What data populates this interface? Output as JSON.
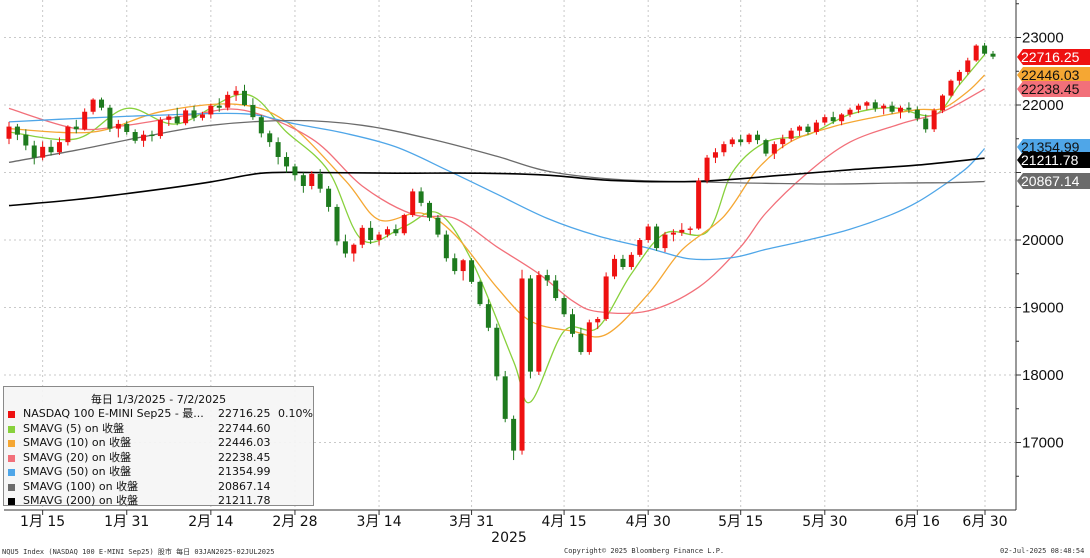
{
  "chart_data": {
    "type": "candlestick",
    "instrument": "NASDAQ 100 E-MINI Sep25 - 最...",
    "y_axis": {
      "ticks": [
        17000,
        18000,
        19000,
        20000,
        21000,
        22000,
        23000
      ],
      "tick_labels": [
        "17000",
        "18000",
        "19000",
        "20000",
        "",
        "22000",
        "23000"
      ],
      "range": [
        16000,
        23550
      ],
      "side": "right"
    },
    "x_axis": {
      "labels": [
        "1月 15",
        "1月 31",
        "2月 14",
        "2月 28",
        "3月 14",
        "3月 31",
        "4月 15",
        "4月 30",
        "5月 15",
        "5月 30",
        "6月 16",
        "6月 30"
      ],
      "year_label": "2025"
    },
    "grid": true,
    "legend_placement": "bottom-left",
    "current_values": [
      {
        "label": "22716.25",
        "value": 22716.25,
        "bg": "#ee1111",
        "fg": "#ffffff"
      },
      {
        "label": "22446.03",
        "value": 22446.03,
        "bg": "#f5a733",
        "fg": "#111111"
      },
      {
        "label": "22238.45",
        "value": 22238.45,
        "bg": "#f2707a",
        "fg": "#111111"
      },
      {
        "label": "21354.99",
        "value": 21354.99,
        "bg": "#4fa6e8",
        "fg": "#111111"
      },
      {
        "label": "21211.78",
        "value": 21211.78,
        "bg": "#000000",
        "fg": "#ffffff"
      },
      {
        "label": "20867.14",
        "value": 20867.14,
        "bg": "#6b6b6b",
        "fg": "#ffffff"
      }
    ],
    "candles_ohlc": [
      [
        21500,
        21750,
        21420,
        21680
      ],
      [
        21680,
        21720,
        21480,
        21560
      ],
      [
        21560,
        21640,
        21330,
        21400
      ],
      [
        21400,
        21470,
        21120,
        21220
      ],
      [
        21220,
        21460,
        21180,
        21380
      ],
      [
        21380,
        21480,
        21250,
        21300
      ],
      [
        21300,
        21520,
        21260,
        21450
      ],
      [
        21450,
        21700,
        21400,
        21680
      ],
      [
        21680,
        21780,
        21580,
        21640
      ],
      [
        21640,
        21950,
        21620,
        21900
      ],
      [
        21900,
        22100,
        21860,
        22080
      ],
      [
        22080,
        22110,
        21920,
        21960
      ],
      [
        21960,
        22000,
        21600,
        21650
      ],
      [
        21650,
        21780,
        21520,
        21720
      ],
      [
        21720,
        21760,
        21560,
        21600
      ],
      [
        21600,
        21640,
        21430,
        21470
      ],
      [
        21470,
        21620,
        21380,
        21560
      ],
      [
        21560,
        21620,
        21460,
        21540
      ],
      [
        21540,
        21820,
        21500,
        21780
      ],
      [
        21780,
        21860,
        21690,
        21830
      ],
      [
        21830,
        21960,
        21700,
        21730
      ],
      [
        21730,
        21950,
        21700,
        21920
      ],
      [
        21920,
        21990,
        21760,
        21810
      ],
      [
        21810,
        21900,
        21770,
        21860
      ],
      [
        21860,
        22020,
        21800,
        21990
      ],
      [
        21990,
        22100,
        21900,
        21960
      ],
      [
        21960,
        22200,
        21920,
        22150
      ],
      [
        22150,
        22280,
        22060,
        22210
      ],
      [
        22210,
        22300,
        21980,
        22000
      ],
      [
        22000,
        22100,
        21780,
        21820
      ],
      [
        21820,
        21850,
        21520,
        21580
      ],
      [
        21580,
        21620,
        21380,
        21450
      ],
      [
        21450,
        21520,
        21120,
        21230
      ],
      [
        21230,
        21300,
        21000,
        21090
      ],
      [
        21090,
        21130,
        20880,
        20960
      ],
      [
        20960,
        21000,
        20700,
        20800
      ],
      [
        20800,
        21020,
        20750,
        20980
      ],
      [
        20980,
        21050,
        20700,
        20760
      ],
      [
        20760,
        20800,
        20420,
        20490
      ],
      [
        20490,
        20530,
        19920,
        19980
      ],
      [
        19980,
        20080,
        19740,
        19800
      ],
      [
        19800,
        19950,
        19680,
        19930
      ],
      [
        19930,
        20220,
        19880,
        20180
      ],
      [
        20180,
        20280,
        19940,
        20000
      ],
      [
        20000,
        20120,
        19920,
        20080
      ],
      [
        20080,
        20200,
        20040,
        20160
      ],
      [
        20160,
        20230,
        20060,
        20100
      ],
      [
        20100,
        20390,
        20070,
        20370
      ],
      [
        20370,
        20760,
        20340,
        20720
      ],
      [
        20720,
        20780,
        20500,
        20550
      ],
      [
        20550,
        20580,
        20280,
        20330
      ],
      [
        20330,
        20370,
        20040,
        20080
      ],
      [
        20080,
        20140,
        19680,
        19730
      ],
      [
        19730,
        19800,
        19490,
        19540
      ],
      [
        19540,
        19720,
        19400,
        19700
      ],
      [
        19700,
        19730,
        19350,
        19380
      ],
      [
        19380,
        19400,
        19020,
        19050
      ],
      [
        19050,
        19120,
        18650,
        18700
      ],
      [
        18700,
        18760,
        17920,
        17980
      ],
      [
        17980,
        18060,
        17300,
        17350
      ],
      [
        17350,
        17400,
        16740,
        16880
      ],
      [
        16880,
        19560,
        16820,
        19430
      ],
      [
        19430,
        19480,
        17950,
        18050
      ],
      [
        18050,
        19540,
        18000,
        19480
      ],
      [
        19480,
        19560,
        19320,
        19400
      ],
      [
        19400,
        19480,
        19100,
        19140
      ],
      [
        19140,
        19180,
        18860,
        18900
      ],
      [
        18900,
        18980,
        18560,
        18610
      ],
      [
        18610,
        18700,
        18300,
        18340
      ],
      [
        18340,
        18820,
        18300,
        18780
      ],
      [
        18780,
        18860,
        18680,
        18830
      ],
      [
        18830,
        19520,
        18800,
        19460
      ],
      [
        19460,
        19780,
        19420,
        19720
      ],
      [
        19720,
        19780,
        19560,
        19600
      ],
      [
        19600,
        19820,
        19560,
        19780
      ],
      [
        19780,
        20030,
        19750,
        20000
      ],
      [
        20000,
        20240,
        19960,
        20200
      ],
      [
        20200,
        20240,
        19840,
        19880
      ],
      [
        19880,
        20120,
        19820,
        20080
      ],
      [
        20080,
        20160,
        19980,
        20110
      ],
      [
        20110,
        20250,
        20060,
        20150
      ],
      [
        20150,
        20200,
        20080,
        20170
      ],
      [
        20170,
        20920,
        20150,
        20880
      ],
      [
        20880,
        21260,
        20840,
        21220
      ],
      [
        21220,
        21360,
        21140,
        21300
      ],
      [
        21300,
        21460,
        21240,
        21420
      ],
      [
        21420,
        21520,
        21380,
        21490
      ],
      [
        21490,
        21560,
        21400,
        21450
      ],
      [
        21450,
        21580,
        21420,
        21560
      ],
      [
        21560,
        21620,
        21420,
        21480
      ],
      [
        21480,
        21500,
        21240,
        21280
      ],
      [
        21280,
        21460,
        21200,
        21420
      ],
      [
        21420,
        21560,
        21360,
        21500
      ],
      [
        21500,
        21660,
        21460,
        21620
      ],
      [
        21620,
        21700,
        21540,
        21680
      ],
      [
        21680,
        21720,
        21560,
        21600
      ],
      [
        21600,
        21780,
        21560,
        21740
      ],
      [
        21740,
        21860,
        21700,
        21820
      ],
      [
        21820,
        21900,
        21720,
        21760
      ],
      [
        21760,
        21880,
        21700,
        21860
      ],
      [
        21860,
        21960,
        21820,
        21930
      ],
      [
        21930,
        22020,
        21880,
        21990
      ],
      [
        21990,
        22060,
        21930,
        22040
      ],
      [
        22040,
        22080,
        21900,
        21950
      ],
      [
        21950,
        22020,
        21860,
        21990
      ],
      [
        21990,
        22050,
        21870,
        21900
      ],
      [
        21900,
        21990,
        21800,
        21960
      ],
      [
        21960,
        22040,
        21880,
        21930
      ],
      [
        21930,
        21980,
        21760,
        21800
      ],
      [
        21800,
        21860,
        21590,
        21640
      ],
      [
        21640,
        21950,
        21600,
        21920
      ],
      [
        21920,
        22160,
        21880,
        22140
      ],
      [
        22140,
        22380,
        22120,
        22360
      ],
      [
        22360,
        22520,
        22300,
        22490
      ],
      [
        22490,
        22700,
        22450,
        22660
      ],
      [
        22660,
        22900,
        22640,
        22880
      ],
      [
        22880,
        22920,
        22740,
        22760
      ],
      [
        22760,
        22800,
        22680,
        22716
      ]
    ],
    "moving_averages": [
      {
        "name": "SMAVG (5)",
        "color": "#88d13c",
        "points": [
          [
            0,
            21600
          ],
          [
            8,
            21500
          ],
          [
            14,
            21950
          ],
          [
            20,
            21720
          ],
          [
            28,
            22160
          ],
          [
            33,
            21600
          ],
          [
            38,
            21020
          ],
          [
            42,
            20000
          ],
          [
            47,
            20200
          ],
          [
            51,
            20400
          ],
          [
            55,
            19700
          ],
          [
            60,
            18200
          ],
          [
            62,
            17600
          ],
          [
            66,
            18650
          ],
          [
            70,
            18700
          ],
          [
            74,
            19500
          ],
          [
            78,
            20100
          ],
          [
            83,
            20120
          ],
          [
            86,
            21000
          ],
          [
            90,
            21450
          ],
          [
            95,
            21560
          ],
          [
            100,
            21860
          ],
          [
            105,
            21960
          ],
          [
            110,
            21850
          ],
          [
            113,
            22300
          ],
          [
            116,
            22745
          ]
        ]
      },
      {
        "name": "SMAVG (10)",
        "color": "#f5a733",
        "points": [
          [
            0,
            21650
          ],
          [
            10,
            21600
          ],
          [
            18,
            21900
          ],
          [
            27,
            22010
          ],
          [
            33,
            21750
          ],
          [
            40,
            20880
          ],
          [
            44,
            20300
          ],
          [
            49,
            20400
          ],
          [
            53,
            20080
          ],
          [
            58,
            19300
          ],
          [
            62,
            18800
          ],
          [
            67,
            18650
          ],
          [
            71,
            18600
          ],
          [
            76,
            19200
          ],
          [
            80,
            19850
          ],
          [
            85,
            20350
          ],
          [
            89,
            21050
          ],
          [
            93,
            21460
          ],
          [
            98,
            21680
          ],
          [
            103,
            21820
          ],
          [
            108,
            21930
          ],
          [
            111,
            21950
          ],
          [
            114,
            22200
          ],
          [
            116,
            22446
          ]
        ]
      },
      {
        "name": "SMAVG (20)",
        "color": "#f2707a",
        "points": [
          [
            0,
            21950
          ],
          [
            8,
            21650
          ],
          [
            14,
            21700
          ],
          [
            22,
            21860
          ],
          [
            28,
            21920
          ],
          [
            36,
            21500
          ],
          [
            42,
            20800
          ],
          [
            48,
            20380
          ],
          [
            53,
            20320
          ],
          [
            58,
            19900
          ],
          [
            63,
            19500
          ],
          [
            67,
            19100
          ],
          [
            70,
            18940
          ],
          [
            76,
            18950
          ],
          [
            82,
            19300
          ],
          [
            87,
            19900
          ],
          [
            90,
            20400
          ],
          [
            95,
            21000
          ],
          [
            100,
            21450
          ],
          [
            106,
            21720
          ],
          [
            111,
            21900
          ],
          [
            116,
            22238
          ]
        ]
      },
      {
        "name": "SMAVG (50)",
        "color": "#4fa6e8",
        "points": [
          [
            0,
            21750
          ],
          [
            8,
            21800
          ],
          [
            18,
            21850
          ],
          [
            28,
            21870
          ],
          [
            34,
            21720
          ],
          [
            40,
            21580
          ],
          [
            46,
            21380
          ],
          [
            52,
            21040
          ],
          [
            58,
            20680
          ],
          [
            64,
            20320
          ],
          [
            70,
            20060
          ],
          [
            76,
            19880
          ],
          [
            81,
            19720
          ],
          [
            86,
            19740
          ],
          [
            90,
            19860
          ],
          [
            95,
            20000
          ],
          [
            100,
            20160
          ],
          [
            105,
            20380
          ],
          [
            108,
            20560
          ],
          [
            111,
            20800
          ],
          [
            114,
            21080
          ],
          [
            116,
            21355
          ]
        ]
      },
      {
        "name": "SMAVG (100)",
        "color": "#6b6b6b",
        "points": [
          [
            0,
            21150
          ],
          [
            8,
            21330
          ],
          [
            16,
            21530
          ],
          [
            24,
            21700
          ],
          [
            34,
            21770
          ],
          [
            42,
            21700
          ],
          [
            50,
            21500
          ],
          [
            58,
            21240
          ],
          [
            64,
            21020
          ],
          [
            72,
            20900
          ],
          [
            82,
            20860
          ],
          [
            90,
            20840
          ],
          [
            98,
            20830
          ],
          [
            106,
            20845
          ],
          [
            112,
            20850
          ],
          [
            116,
            20867
          ]
        ]
      },
      {
        "name": "SMAVG (200)",
        "color": "#000000",
        "points": [
          [
            0,
            20510
          ],
          [
            8,
            20600
          ],
          [
            16,
            20720
          ],
          [
            24,
            20860
          ],
          [
            30,
            20990
          ],
          [
            36,
            21000
          ],
          [
            46,
            20990
          ],
          [
            56,
            20990
          ],
          [
            64,
            20960
          ],
          [
            72,
            20880
          ],
          [
            82,
            20870
          ],
          [
            92,
            20960
          ],
          [
            100,
            21040
          ],
          [
            108,
            21110
          ],
          [
            116,
            21212
          ]
        ]
      }
    ]
  },
  "legend": {
    "title": "毎日 1/3/2025 - 7/2/2025",
    "rows": [
      {
        "name": "NASDAQ 100 E-MINI Sep25 - 最...",
        "value": "22716.25",
        "change": "0.10%",
        "color": "#ee1111"
      },
      {
        "name": "SMAVG (5)  on 收盤",
        "value": "22744.60",
        "change": "",
        "color": "#88d13c"
      },
      {
        "name": "SMAVG (10)  on 收盤",
        "value": "22446.03",
        "change": "",
        "color": "#f5a733"
      },
      {
        "name": "SMAVG (20)  on 收盤",
        "value": "22238.45",
        "change": "",
        "color": "#f2707a"
      },
      {
        "name": "SMAVG (50)  on 收盤",
        "value": "21354.99",
        "change": "",
        "color": "#4fa6e8"
      },
      {
        "name": "SMAVG (100)  on 收盤",
        "value": "20867.14",
        "change": "",
        "color": "#6b6b6b"
      },
      {
        "name": "SMAVG (200)  on 收盤",
        "value": "21211.78",
        "change": "",
        "color": "#000000"
      }
    ]
  },
  "footer": {
    "left": "NQU5 Index (NASDAQ 100 E-MINI Sep25) 股市  每日 03JAN2025-02JUL2025",
    "center": "Copyright© 2025 Bloomberg Finance L.P.",
    "right": "02-Jul-2025 08:48:54"
  },
  "colors": {
    "up": "#ee1111",
    "down": "#1e7a1e",
    "grid": "#c9c9c9"
  }
}
